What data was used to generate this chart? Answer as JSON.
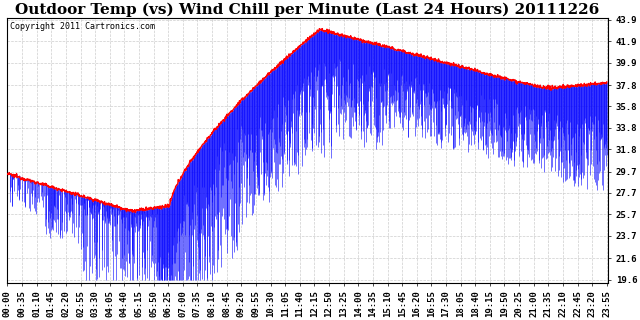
{
  "title": "Outdoor Temp (vs) Wind Chill per Minute (Last 24 Hours) 20111226",
  "copyright_text": "Copyright 2011 Cartronics.com",
  "yticks": [
    19.6,
    21.6,
    23.7,
    25.7,
    27.7,
    29.7,
    31.8,
    33.8,
    35.8,
    37.8,
    39.9,
    41.9,
    43.9
  ],
  "ymin": 19.6,
  "ymax": 43.9,
  "x_labels": [
    "00:00",
    "00:35",
    "01:10",
    "01:45",
    "02:20",
    "02:55",
    "03:30",
    "04:05",
    "04:40",
    "05:15",
    "05:50",
    "06:25",
    "07:00",
    "07:35",
    "08:10",
    "08:45",
    "09:20",
    "09:55",
    "10:30",
    "11:05",
    "11:40",
    "12:15",
    "12:50",
    "13:25",
    "14:00",
    "14:35",
    "15:10",
    "15:45",
    "16:20",
    "16:55",
    "17:30",
    "18:05",
    "18:40",
    "19:15",
    "19:50",
    "20:25",
    "21:00",
    "21:35",
    "22:10",
    "22:45",
    "23:20",
    "23:55"
  ],
  "temp_line_color": "#FF0000",
  "wind_chill_bar_color": "#0000FF",
  "background_color": "#FFFFFF",
  "grid_color": "#C8C8C8",
  "title_fontsize": 11,
  "copyright_fontsize": 6,
  "tick_fontsize": 6.5
}
